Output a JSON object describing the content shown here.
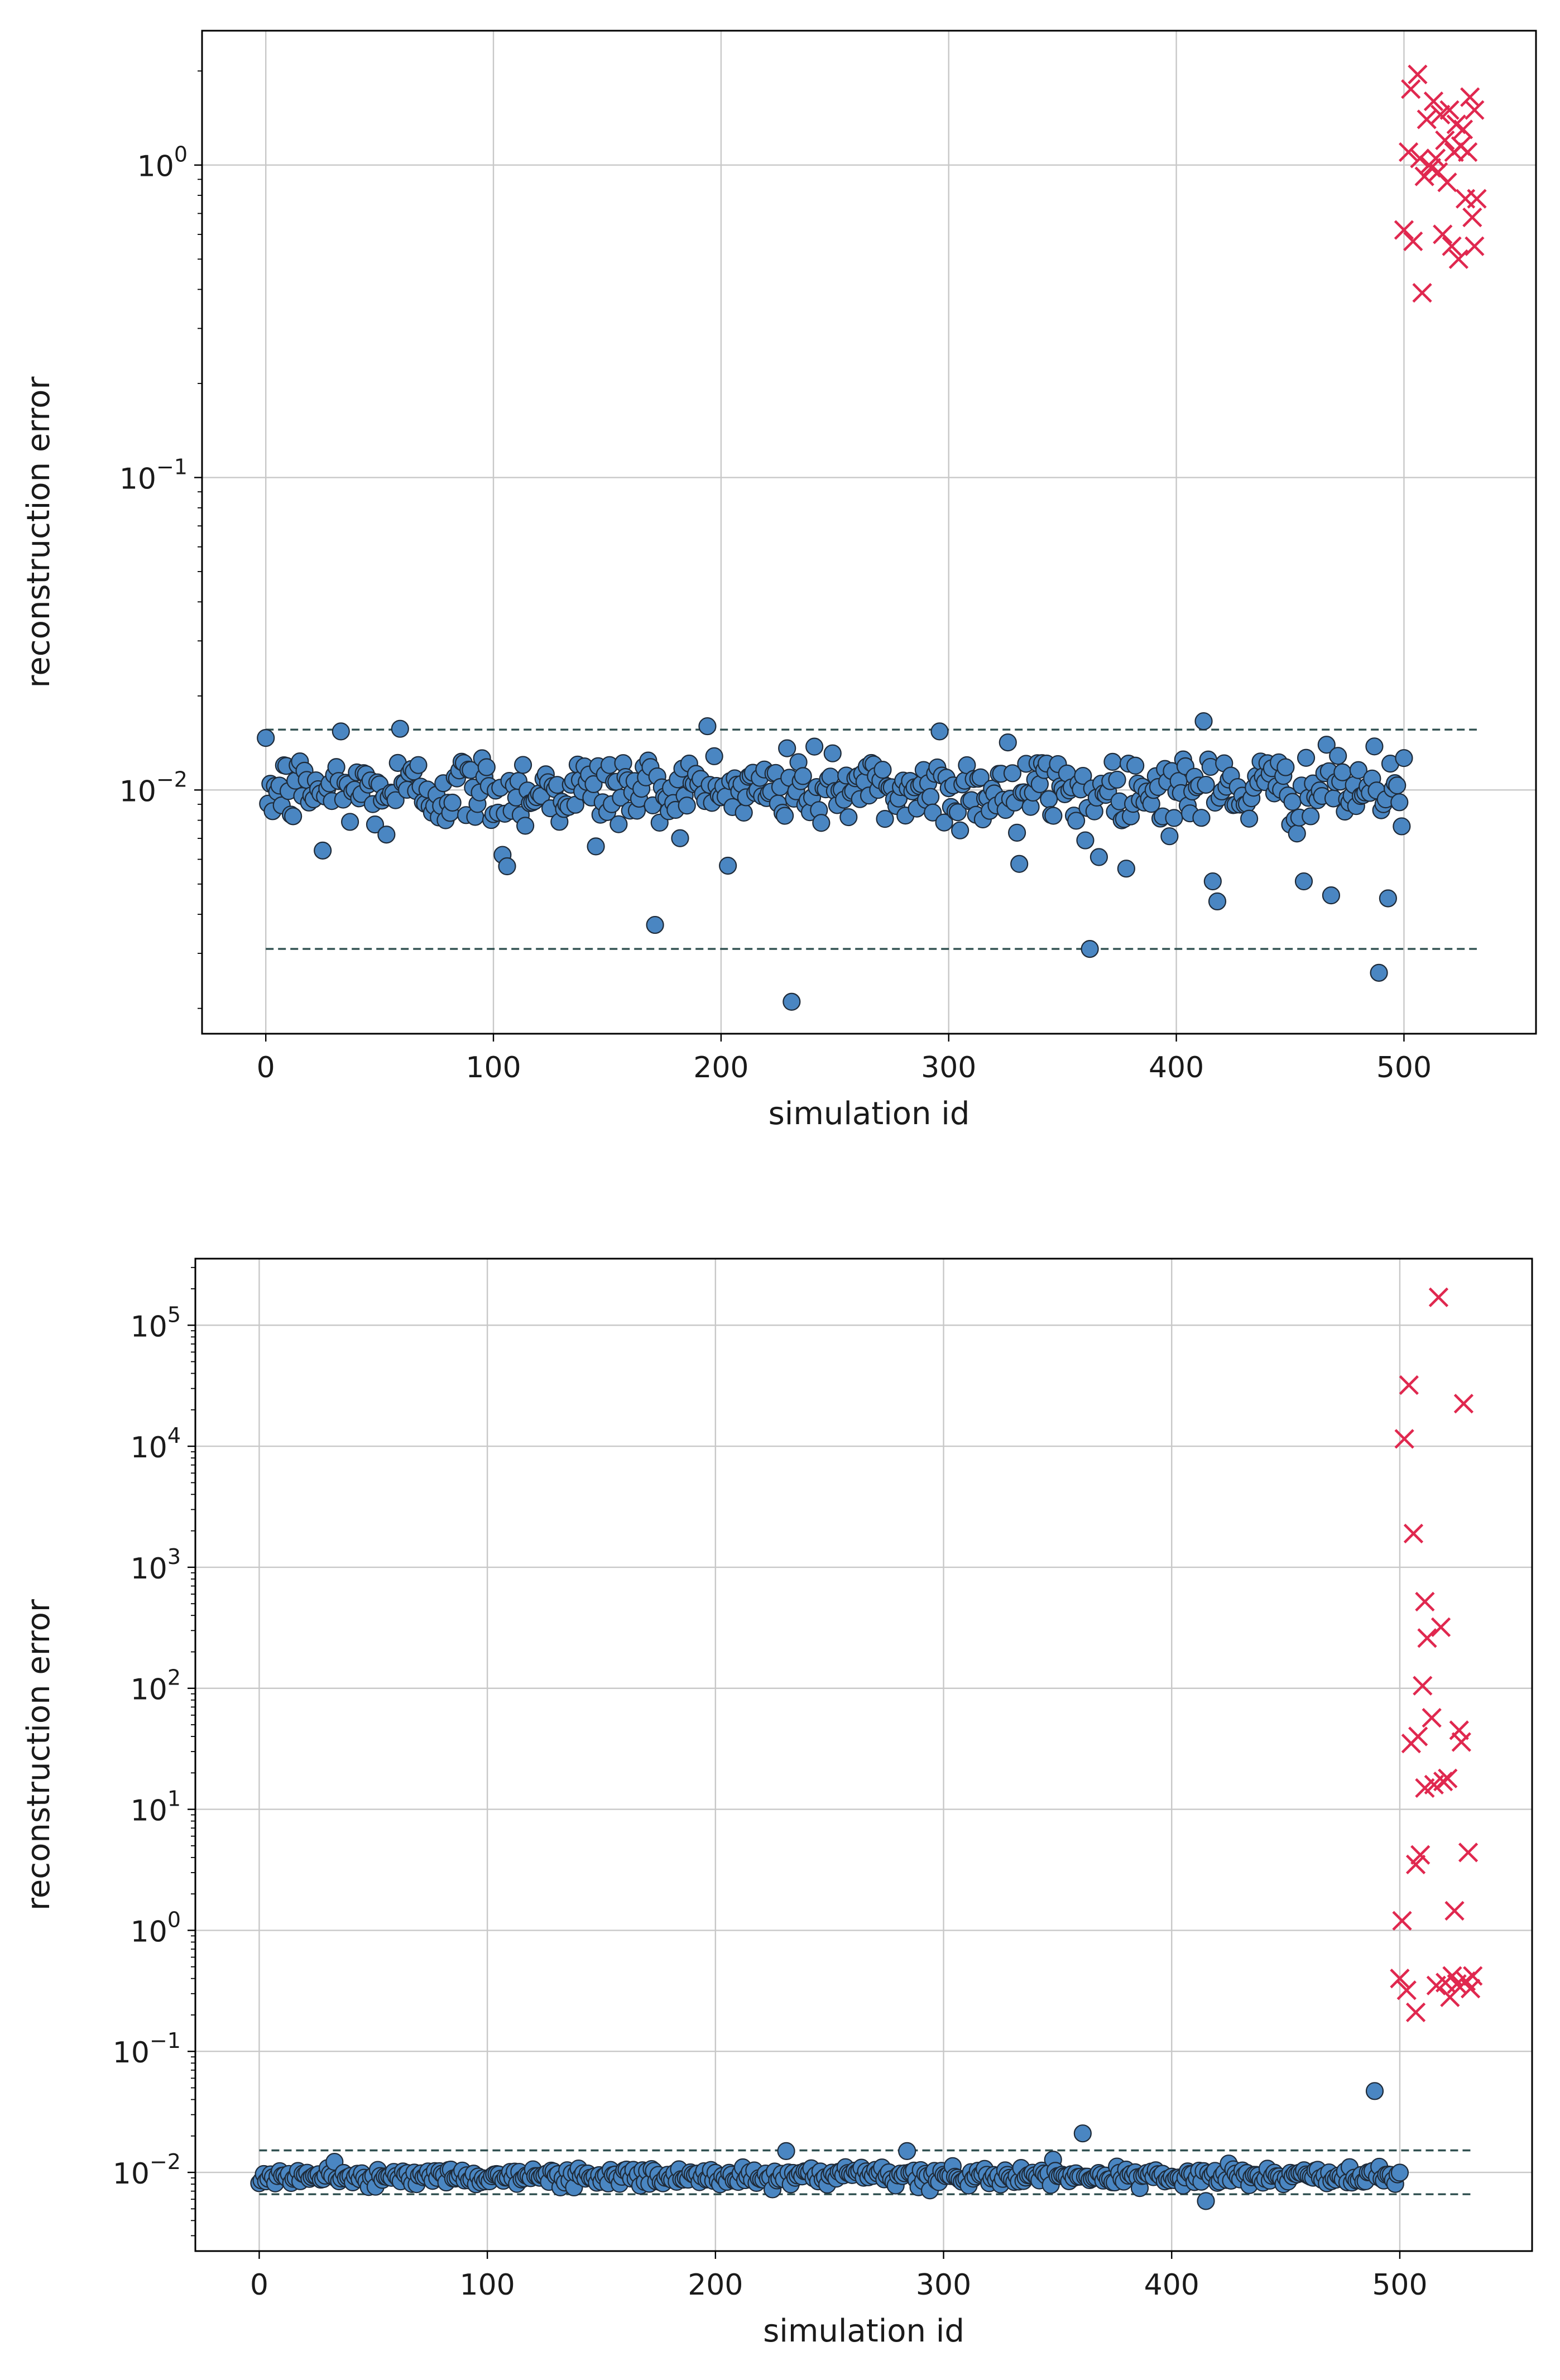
{
  "chart_data": [
    {
      "type": "scatter",
      "title": "",
      "xlabel": "simulation id",
      "ylabel": "reconstruction error",
      "yscale": "log",
      "xlim": [
        -28,
        558
      ],
      "ylim_log10": [
        -2.78,
        0.43
      ],
      "xticks": [
        0,
        100,
        200,
        300,
        400,
        500
      ],
      "yticks": [
        {
          "base": "10",
          "exp": "−2",
          "value": -2
        },
        {
          "base": "10",
          "exp": "−1",
          "value": -1
        },
        {
          "base": "10",
          "exp": "0",
          "value": 0
        }
      ],
      "grid": true,
      "thresholds": [
        0.0156,
        0.0031
      ],
      "colors": {
        "normal": "#4a86c2",
        "anomaly": "#e0284f",
        "threshold": "#2f4f4f"
      },
      "series": [
        {
          "name": "normal",
          "marker": "circle",
          "x_range": [
            0,
            500
          ],
          "center": 0.01,
          "spread_log10": 0.06,
          "outliers": [
            {
              "x": 25,
              "y": 0.0064
            },
            {
              "x": 33,
              "y": 0.0154
            },
            {
              "x": 53,
              "y": 0.0072
            },
            {
              "x": 59,
              "y": 0.0157
            },
            {
              "x": 104,
              "y": 0.0062
            },
            {
              "x": 106,
              "y": 0.0057
            },
            {
              "x": 145,
              "y": 0.0066
            },
            {
              "x": 171,
              "y": 0.0037
            },
            {
              "x": 194,
              "y": 0.016
            },
            {
              "x": 229,
              "y": 0.0136
            },
            {
              "x": 231,
              "y": 0.0021
            },
            {
              "x": 249,
              "y": 0.0131
            },
            {
              "x": 296,
              "y": 0.0154
            },
            {
              "x": 326,
              "y": 0.0142
            },
            {
              "x": 330,
              "y": 0.0073
            },
            {
              "x": 331,
              "y": 0.0058
            },
            {
              "x": 360,
              "y": 0.0069
            },
            {
              "x": 362,
              "y": 0.0031
            },
            {
              "x": 366,
              "y": 0.0061
            },
            {
              "x": 412,
              "y": 0.0166
            },
            {
              "x": 416,
              "y": 0.0051
            },
            {
              "x": 418,
              "y": 0.0044
            },
            {
              "x": 456,
              "y": 0.0051
            },
            {
              "x": 468,
              "y": 0.0046
            },
            {
              "x": 489,
              "y": 0.0026
            },
            {
              "x": 493,
              "y": 0.0045
            }
          ]
        },
        {
          "name": "anomalous",
          "marker": "x",
          "points": [
            {
              "x": 500,
              "y": 0.62
            },
            {
              "x": 502,
              "y": 1.1
            },
            {
              "x": 503,
              "y": 1.75
            },
            {
              "x": 504,
              "y": 0.57
            },
            {
              "x": 506,
              "y": 1.95
            },
            {
              "x": 507,
              "y": 1.05
            },
            {
              "x": 508,
              "y": 0.39
            },
            {
              "x": 509,
              "y": 0.92
            },
            {
              "x": 510,
              "y": 1.4
            },
            {
              "x": 511,
              "y": 1.0
            },
            {
              "x": 512,
              "y": 0.98
            },
            {
              "x": 513,
              "y": 1.6
            },
            {
              "x": 514,
              "y": 1.05
            },
            {
              "x": 515,
              "y": 0.95
            },
            {
              "x": 516,
              "y": 1.45
            },
            {
              "x": 517,
              "y": 0.6
            },
            {
              "x": 518,
              "y": 1.2
            },
            {
              "x": 519,
              "y": 0.88
            },
            {
              "x": 520,
              "y": 1.5
            },
            {
              "x": 521,
              "y": 0.55
            },
            {
              "x": 522,
              "y": 1.1
            },
            {
              "x": 523,
              "y": 1.35
            },
            {
              "x": 524,
              "y": 0.5
            },
            {
              "x": 525,
              "y": 1.15
            },
            {
              "x": 526,
              "y": 1.3
            },
            {
              "x": 527,
              "y": 0.78
            },
            {
              "x": 528,
              "y": 1.1
            },
            {
              "x": 529,
              "y": 1.65
            },
            {
              "x": 530,
              "y": 0.68
            },
            {
              "x": 531,
              "y": 1.5
            },
            {
              "x": 531,
              "y": 0.55
            },
            {
              "x": 532,
              "y": 0.78
            }
          ]
        }
      ]
    },
    {
      "type": "scatter",
      "title": "",
      "xlabel": "simulation id",
      "ylabel": "reconstruction error",
      "yscale": "log",
      "xlim": [
        -28,
        558
      ],
      "ylim_log10": [
        -2.65,
        5.55
      ],
      "xticks": [
        0,
        100,
        200,
        300,
        400,
        500
      ],
      "yticks": [
        {
          "base": "10",
          "exp": "−2",
          "value": -2
        },
        {
          "base": "10",
          "exp": "−1",
          "value": -1
        },
        {
          "base": "10",
          "exp": "0",
          "value": 0
        },
        {
          "base": "10",
          "exp": "1",
          "value": 1
        },
        {
          "base": "10",
          "exp": "2",
          "value": 2
        },
        {
          "base": "10",
          "exp": "3",
          "value": 3
        },
        {
          "base": "10",
          "exp": "4",
          "value": 4
        },
        {
          "base": "10",
          "exp": "5",
          "value": 5
        }
      ],
      "grid": true,
      "thresholds": [
        0.0152,
        0.0066
      ],
      "colors": {
        "normal": "#4a86c2",
        "anomaly": "#e0284f",
        "threshold": "#2f4f4f"
      },
      "series": [
        {
          "name": "normal",
          "marker": "circle",
          "x_range": [
            0,
            500
          ],
          "center": 0.0092,
          "spread_log10": 0.035,
          "outliers": [
            {
              "x": 231,
              "y": 0.015
            },
            {
              "x": 284,
              "y": 0.015
            },
            {
              "x": 361,
              "y": 0.021
            },
            {
              "x": 415,
              "y": 0.0058
            },
            {
              "x": 489,
              "y": 0.047
            }
          ]
        },
        {
          "name": "anomalous",
          "marker": "x",
          "points": [
            {
              "x": 500,
              "y": 0.4
            },
            {
              "x": 501,
              "y": 1.2
            },
            {
              "x": 502,
              "y": 11500
            },
            {
              "x": 503,
              "y": 0.32
            },
            {
              "x": 504,
              "y": 32000
            },
            {
              "x": 505,
              "y": 35
            },
            {
              "x": 506,
              "y": 1900
            },
            {
              "x": 507,
              "y": 0.21
            },
            {
              "x": 507,
              "y": 3.5
            },
            {
              "x": 508,
              "y": 40
            },
            {
              "x": 509,
              "y": 4.2
            },
            {
              "x": 510,
              "y": 105
            },
            {
              "x": 511,
              "y": 520
            },
            {
              "x": 511,
              "y": 15
            },
            {
              "x": 512,
              "y": 260
            },
            {
              "x": 514,
              "y": 57
            },
            {
              "x": 515,
              "y": 16
            },
            {
              "x": 516,
              "y": 0.35
            },
            {
              "x": 517,
              "y": 170000
            },
            {
              "x": 518,
              "y": 320
            },
            {
              "x": 519,
              "y": 17
            },
            {
              "x": 520,
              "y": 0.37
            },
            {
              "x": 521,
              "y": 18
            },
            {
              "x": 522,
              "y": 0.28
            },
            {
              "x": 523,
              "y": 0.42
            },
            {
              "x": 524,
              "y": 1.45
            },
            {
              "x": 525,
              "y": 0.36
            },
            {
              "x": 526,
              "y": 45
            },
            {
              "x": 527,
              "y": 36
            },
            {
              "x": 528,
              "y": 22500
            },
            {
              "x": 529,
              "y": 0.38
            },
            {
              "x": 530,
              "y": 4.4
            },
            {
              "x": 531,
              "y": 0.33
            },
            {
              "x": 532,
              "y": 0.42
            }
          ]
        }
      ]
    }
  ]
}
